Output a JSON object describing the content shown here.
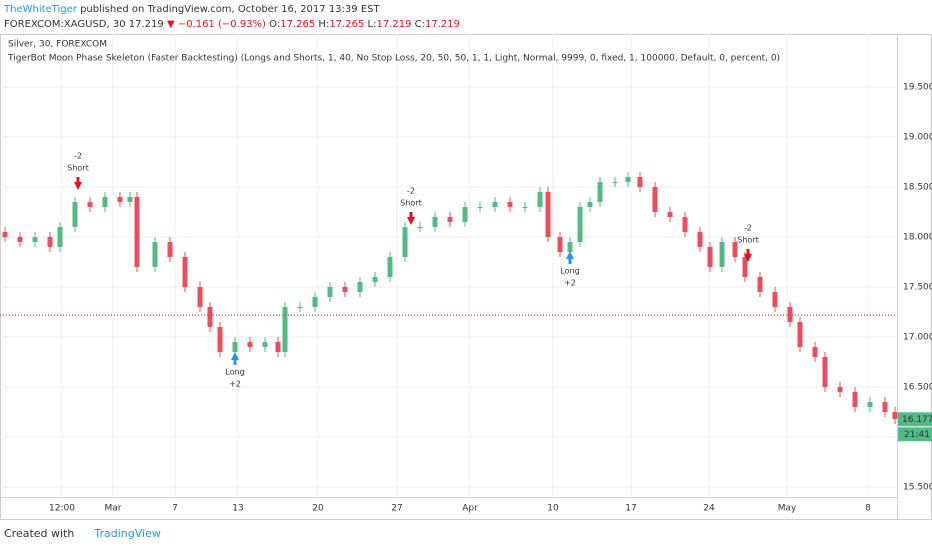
{
  "header": {
    "author": "TheWhiteTiger",
    "published": "published on TradingView.com, October 16, 2017 13:39 EST",
    "symbol": "FOREXCOM:XAGUSD, 30",
    "last": "17.219",
    "change": "▼ −0.161 (−0.93%)",
    "ohlc": [
      {
        "k": "O:",
        "v": "17.265"
      },
      {
        "k": "H:",
        "v": "17.265"
      },
      {
        "k": "L:",
        "v": "17.219"
      },
      {
        "k": "C:",
        "v": "17.219"
      }
    ]
  },
  "footer": {
    "created": "Created with",
    "brand": "TradingView"
  },
  "chart_data": {
    "type": "candlestick",
    "title": "Silver, 30, FOREXCOM",
    "subtitle": "TigerBot Moon Phase Skeleton (Faster Backtesting) (Longs and Shorts, 1, 40, No Stop Loss, 20, 50, 50, 1, 1, Light, Normal, 9999, 0, fixed, 1, 100000, Default, 0, percent, 0)",
    "up_color": "#53b987",
    "down_color": "#eb4d5c",
    "grid": true,
    "x": [
      5,
      20,
      35,
      50,
      60,
      75,
      90,
      105,
      120,
      130,
      137,
      155,
      170,
      185,
      200,
      210,
      220,
      235,
      250,
      265,
      278,
      285,
      300,
      315,
      330,
      345,
      360,
      375,
      390,
      405,
      420,
      435,
      450,
      465,
      480,
      495,
      510,
      525,
      540,
      548,
      560,
      570,
      580,
      590,
      600,
      615,
      628,
      640,
      655,
      670,
      685,
      700,
      710,
      722,
      735,
      745,
      760,
      775,
      790,
      800,
      815,
      825,
      840,
      855,
      870,
      885,
      895
    ],
    "open": [
      18.05,
      18.0,
      17.95,
      18.0,
      17.9,
      18.1,
      18.35,
      18.3,
      18.4,
      18.35,
      18.4,
      17.7,
      17.95,
      17.8,
      17.5,
      17.3,
      17.1,
      16.85,
      16.95,
      16.9,
      16.95,
      16.85,
      17.3,
      17.3,
      17.4,
      17.5,
      17.45,
      17.55,
      17.6,
      17.8,
      18.1,
      18.1,
      18.2,
      18.15,
      18.3,
      18.3,
      18.35,
      18.3,
      18.3,
      18.45,
      18.0,
      17.85,
      17.95,
      18.3,
      18.35,
      18.55,
      18.55,
      18.6,
      18.5,
      18.25,
      18.2,
      18.05,
      17.9,
      17.7,
      17.95,
      17.8,
      17.6,
      17.45,
      17.3,
      17.15,
      16.9,
      16.8,
      16.5,
      16.45,
      16.3,
      16.35,
      16.25
    ],
    "high": [
      18.1,
      18.05,
      18.05,
      18.05,
      18.15,
      18.4,
      18.4,
      18.45,
      18.45,
      18.45,
      18.45,
      18.0,
      18.0,
      17.85,
      17.55,
      17.35,
      17.15,
      17.0,
      17.0,
      17.0,
      17.0,
      17.35,
      17.35,
      17.45,
      17.55,
      17.55,
      17.6,
      17.65,
      17.85,
      18.15,
      18.15,
      18.25,
      18.25,
      18.35,
      18.35,
      18.4,
      18.4,
      18.35,
      18.5,
      18.5,
      18.05,
      18.0,
      18.35,
      18.4,
      18.6,
      18.6,
      18.65,
      18.65,
      18.55,
      18.3,
      18.25,
      18.1,
      17.95,
      18.0,
      18.0,
      17.85,
      17.65,
      17.5,
      17.35,
      17.2,
      16.95,
      16.85,
      16.55,
      16.5,
      16.4,
      16.4,
      16.3
    ],
    "low": [
      17.95,
      17.9,
      17.9,
      17.85,
      17.85,
      18.05,
      18.25,
      18.25,
      18.3,
      18.3,
      17.65,
      17.65,
      17.75,
      17.45,
      17.25,
      17.05,
      16.8,
      16.8,
      16.85,
      16.85,
      16.8,
      16.8,
      17.25,
      17.25,
      17.35,
      17.4,
      17.4,
      17.5,
      17.55,
      17.75,
      18.05,
      18.05,
      18.1,
      18.1,
      18.25,
      18.25,
      18.25,
      18.25,
      18.25,
      17.95,
      17.8,
      17.8,
      17.9,
      18.25,
      18.3,
      18.5,
      18.5,
      18.45,
      18.2,
      18.15,
      18.0,
      17.85,
      17.65,
      17.65,
      17.75,
      17.55,
      17.4,
      17.25,
      17.1,
      16.85,
      16.75,
      16.45,
      16.4,
      16.25,
      16.25,
      16.2,
      16.13
    ],
    "close": [
      18.0,
      17.95,
      18.0,
      17.9,
      18.1,
      18.35,
      18.3,
      18.4,
      18.35,
      18.4,
      17.7,
      17.95,
      17.8,
      17.5,
      17.3,
      17.1,
      16.85,
      16.95,
      16.9,
      16.95,
      16.85,
      17.3,
      17.3,
      17.4,
      17.5,
      17.45,
      17.55,
      17.6,
      17.8,
      18.1,
      18.1,
      18.2,
      18.15,
      18.3,
      18.3,
      18.35,
      18.3,
      18.3,
      18.45,
      18.0,
      17.85,
      17.95,
      18.3,
      18.35,
      18.55,
      18.55,
      18.6,
      18.5,
      18.25,
      18.2,
      18.05,
      17.9,
      17.7,
      17.95,
      17.8,
      17.6,
      17.45,
      17.3,
      17.15,
      16.9,
      16.8,
      16.5,
      16.45,
      16.3,
      16.35,
      16.25,
      16.18
    ],
    "signals": [
      {
        "x": 78,
        "y": 18.47,
        "label": "Short",
        "amount": "-2",
        "color": "#e0131a"
      },
      {
        "x": 235,
        "y": 16.85,
        "label": "Long",
        "amount": "+2",
        "color": "#2196f3"
      },
      {
        "x": 411,
        "y": 18.12,
        "label": "Short",
        "amount": "-2",
        "color": "#e0131a"
      },
      {
        "x": 570,
        "y": 17.86,
        "label": "Long",
        "amount": "+2",
        "color": "#2196f3"
      },
      {
        "x": 748,
        "y": 17.75,
        "label": "Short",
        "amount": "-2",
        "color": "#e0131a"
      }
    ],
    "price_line": 17.219,
    "last_price": 16.177,
    "time_label": "21:41",
    "xlim": [
      0,
      897
    ],
    "xticks": [
      {
        "value": 62,
        "label": "12:00"
      },
      {
        "value": 113,
        "label": "Mar"
      },
      {
        "value": 175,
        "label": "7"
      },
      {
        "value": 238,
        "label": "13"
      },
      {
        "value": 318,
        "label": "20"
      },
      {
        "value": 397,
        "label": "27"
      },
      {
        "value": 470,
        "label": "Apr"
      },
      {
        "value": 553,
        "label": "10"
      },
      {
        "value": 631,
        "label": "17"
      },
      {
        "value": 709,
        "label": "24"
      },
      {
        "value": 787,
        "label": "May"
      },
      {
        "value": 868,
        "label": "8"
      }
    ],
    "ylim": [
      15.42,
      20.03
    ],
    "yticks": [
      {
        "value": 15.5,
        "label": "15.500"
      },
      {
        "value": 16,
        "label": "16.000"
      },
      {
        "value": 16.5,
        "label": "16.500"
      },
      {
        "value": 17,
        "label": "17.000"
      },
      {
        "value": 17.5,
        "label": "17.500"
      },
      {
        "value": 18,
        "label": "18.000"
      },
      {
        "value": 18.5,
        "label": "18.500"
      },
      {
        "value": 19,
        "label": "19.000"
      },
      {
        "value": 19.5,
        "label": "19.500"
      }
    ]
  }
}
